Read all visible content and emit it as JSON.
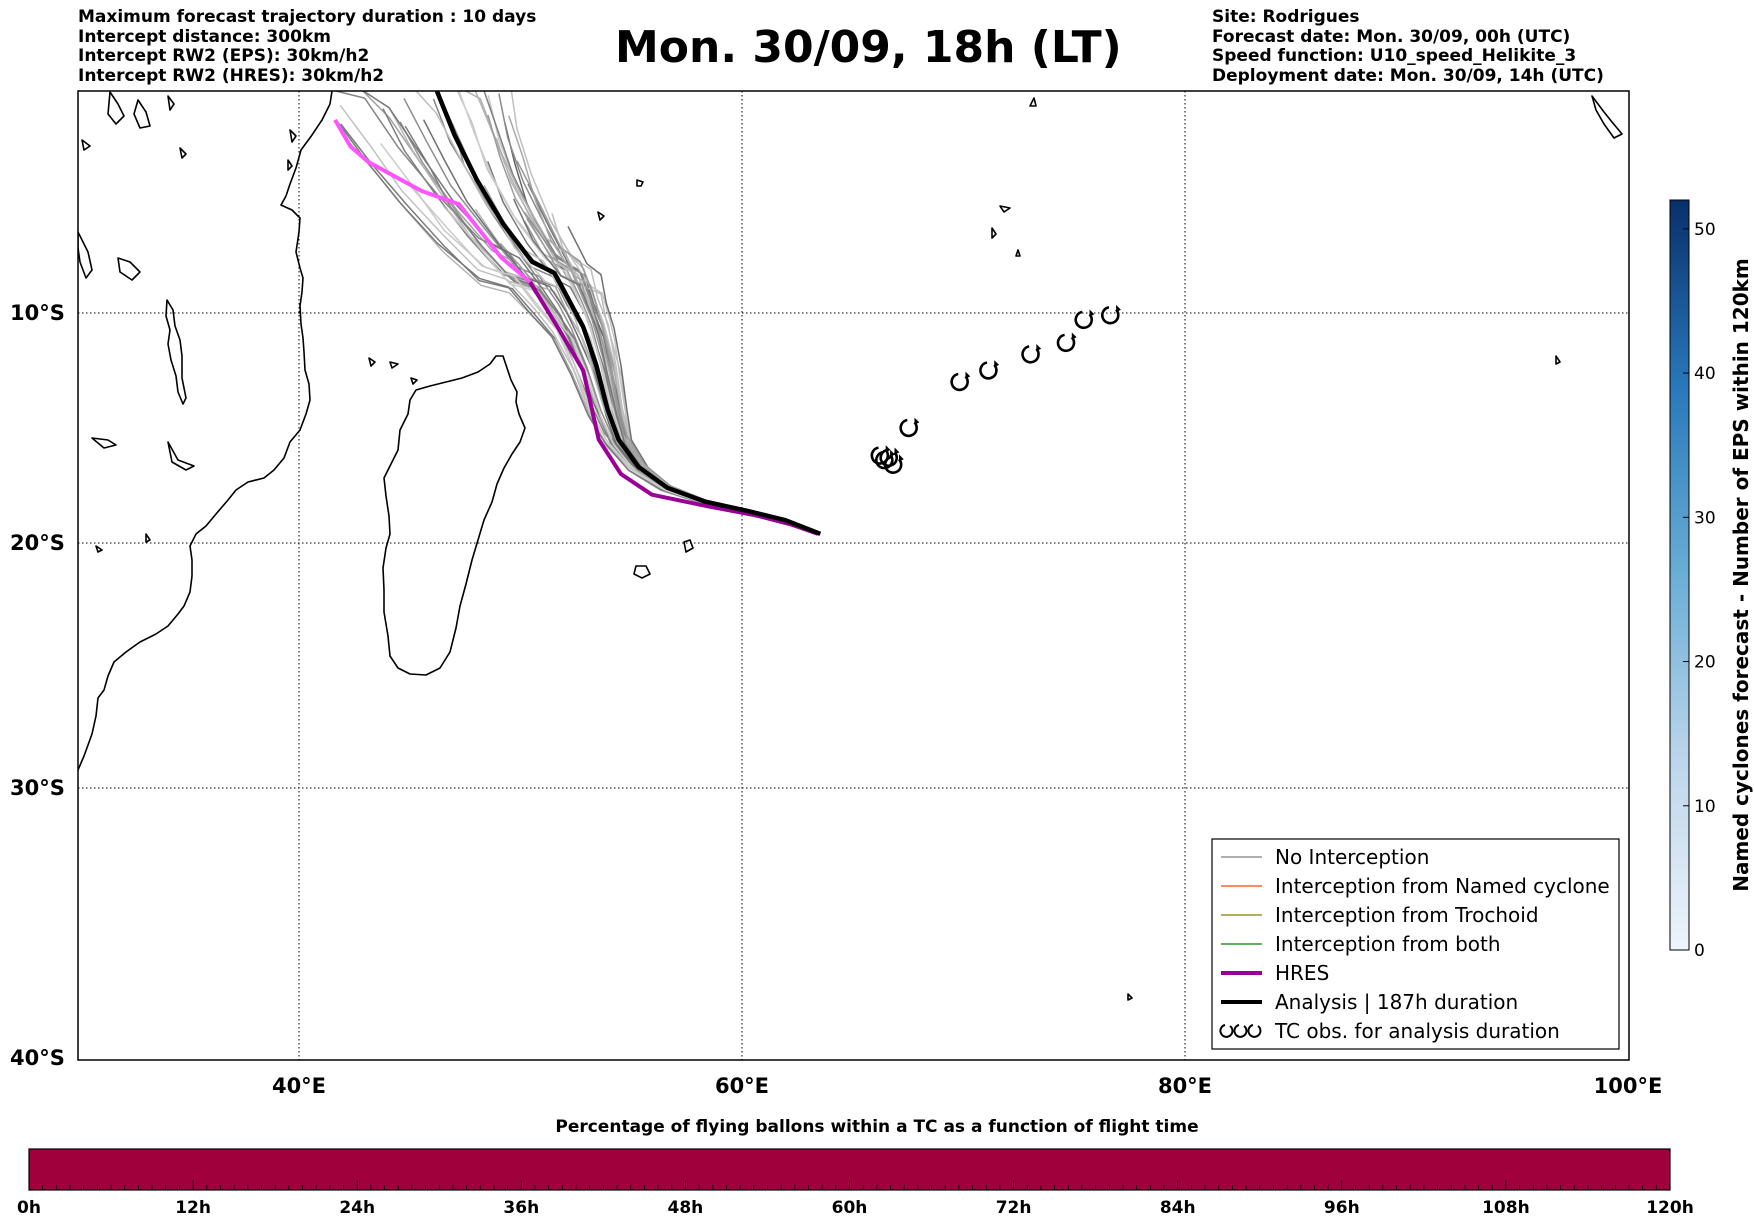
{
  "header_left": [
    "Maximum forecast trajectory duration : 10 days",
    "Intercept distance: 300km",
    "Intercept RW2 (EPS):  30km/h2",
    "Intercept RW2 (HRES): 30km/h2"
  ],
  "title": "Mon. 30/09, 18h (LT)",
  "header_right": [
    "Site: Rodrigues",
    "Forecast date: Mon. 30/09, 00h (UTC)",
    "Speed function: U10_speed_Helikite_3",
    "Deployment date: Mon. 30/09, 14h (UTC)"
  ],
  "map": {
    "lon_range": [
      30,
      100
    ],
    "lat_range": [
      0,
      -40
    ],
    "lon_ticks": [
      40,
      60,
      80,
      100
    ],
    "lon_labels": [
      "40°E",
      "60°E",
      "80°E",
      "100°E"
    ],
    "lat_ticks": [
      -10,
      -20,
      -30,
      -40
    ],
    "lat_labels": [
      "10°S",
      "20°S",
      "30°S",
      "40°S"
    ],
    "grid": true,
    "analysis_track": [
      [
        46.2,
        0.0
      ],
      [
        47.0,
        -2.0
      ],
      [
        48.0,
        -4.0
      ],
      [
        49.2,
        -6.0
      ],
      [
        50.5,
        -7.7
      ],
      [
        51.5,
        -8.2
      ],
      [
        52.2,
        -9.5
      ],
      [
        52.8,
        -10.6
      ],
      [
        53.4,
        -12.3
      ],
      [
        53.9,
        -14.2
      ],
      [
        54.4,
        -15.5
      ],
      [
        55.3,
        -16.7
      ],
      [
        56.6,
        -17.6
      ],
      [
        58.3,
        -18.2
      ],
      [
        60.2,
        -18.6
      ],
      [
        61.9,
        -19.0
      ],
      [
        63.5,
        -19.6
      ]
    ],
    "hres_track": [
      [
        41.6,
        -1.3
      ],
      [
        42.3,
        -2.5
      ],
      [
        43.1,
        -3.2
      ],
      [
        45.5,
        -4.5
      ],
      [
        47.2,
        -5.1
      ],
      [
        49.1,
        -7.5
      ],
      [
        50.4,
        -8.6
      ],
      [
        51.7,
        -10.7
      ],
      [
        52.8,
        -12.5
      ],
      [
        53.5,
        -15.5
      ],
      [
        54.5,
        -17.0
      ],
      [
        55.9,
        -17.9
      ],
      [
        58.4,
        -18.4
      ],
      [
        60.6,
        -18.8
      ],
      [
        62.2,
        -19.2
      ],
      [
        63.4,
        -19.6
      ]
    ],
    "tc_obs": [
      [
        66.2,
        -16.2
      ],
      [
        66.4,
        -16.4
      ],
      [
        66.6,
        -16.3
      ],
      [
        66.8,
        -16.6
      ],
      [
        67.5,
        -15.0
      ],
      [
        69.8,
        -13.0
      ],
      [
        71.1,
        -12.5
      ],
      [
        73.0,
        -11.8
      ],
      [
        74.6,
        -11.3
      ],
      [
        75.4,
        -10.3
      ],
      [
        76.6,
        -10.1
      ]
    ],
    "no_interception_color": "#808080",
    "hres_color": "#9b0096",
    "hres_near_color": "#ff55ff",
    "analysis_color": "#000000"
  },
  "legend": {
    "items": [
      {
        "label": "No Interception",
        "color": "#808080",
        "style": "thin"
      },
      {
        "label": "Interception from Named cyclone",
        "color": "#ff4500",
        "style": "thin"
      },
      {
        "label": "Interception from Trochoid",
        "color": "#808000",
        "style": "thin"
      },
      {
        "label": "Interception from both",
        "color": "#008000",
        "style": "thin"
      },
      {
        "label": "HRES",
        "color": "#9b0096",
        "style": "thick"
      },
      {
        "label": "Analysis | 187h duration",
        "color": "#000000",
        "style": "thick"
      },
      {
        "label": "TC obs. for analysis duration",
        "color": "#000000",
        "style": "tc-icon"
      }
    ],
    "placement": "bottom-right"
  },
  "colorbar": {
    "title": "Named cyclones forecast - Number of EPS within 120km",
    "min": 0,
    "max": 52,
    "ticks": [
      0,
      10,
      20,
      30,
      40,
      50
    ],
    "tick_labels": [
      "0",
      "10",
      "20",
      "30",
      "40",
      "50"
    ],
    "color_low": "#e8f1fa",
    "color_high": "#08306b"
  },
  "bottom_bar": {
    "title": "Percentage of flying ballons within a TC as a function of flight time",
    "tick_labels": [
      "0h",
      "12h",
      "24h",
      "36h",
      "48h",
      "60h",
      "72h",
      "84h",
      "96h",
      "108h",
      "120h"
    ],
    "fill_color": "#a0003c"
  }
}
